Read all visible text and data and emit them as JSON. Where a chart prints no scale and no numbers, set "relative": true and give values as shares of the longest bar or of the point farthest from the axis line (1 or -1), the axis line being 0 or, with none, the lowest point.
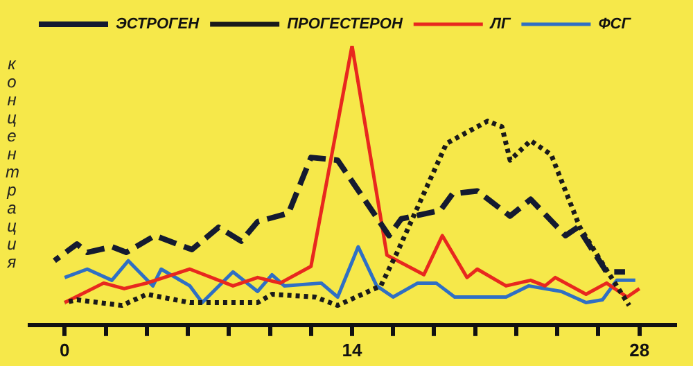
{
  "chart_data": {
    "type": "line",
    "relative": true,
    "ylabel": "концентрация",
    "legend": "top left",
    "marker": "none",
    "grid": false,
    "xlim": [
      -1.8,
      29.8
    ],
    "xticks": [
      0,
      {
        "value": 2,
        "label": null
      },
      {
        "value": 4,
        "label": null
      },
      {
        "value": 6,
        "label": null
      },
      {
        "value": 8,
        "label": null
      },
      {
        "value": 10,
        "label": null
      },
      {
        "value": 12,
        "label": null
      },
      14,
      {
        "value": 16,
        "label": null
      },
      {
        "value": 18,
        "label": null
      },
      {
        "value": 20,
        "label": null
      },
      {
        "value": 22,
        "label": null
      },
      {
        "value": 24,
        "label": null
      },
      {
        "value": 26,
        "label": null
      },
      28
    ],
    "series": [
      {
        "name": "ЭСТРОГЕН",
        "color": "#141a30",
        "line_style": "dashed",
        "x": [
          -0.5,
          0.6,
          1.1,
          2.3,
          3,
          4.4,
          6.2,
          7.5,
          8.6,
          9.4,
          10.9,
          12,
          13.3,
          15.8,
          16.4,
          18.3,
          18.9,
          20.1,
          21.7,
          22.7,
          24.4,
          25,
          26.4,
          27.3
        ],
        "values": [
          0.23,
          0.29,
          0.26,
          0.28,
          0.26,
          0.32,
          0.27,
          0.35,
          0.3,
          0.37,
          0.4,
          0.6,
          0.59,
          0.32,
          0.38,
          0.41,
          0.47,
          0.48,
          0.39,
          0.45,
          0.32,
          0.35,
          0.19,
          0.19
        ]
      },
      {
        "name": "ПРОГЕСТЕРОН",
        "color": "#1a1a1a",
        "line_style": "dotted",
        "x": [
          0,
          0.6,
          2.8,
          4,
          6.1,
          9.4,
          10.1,
          12.2,
          13.3,
          15.4,
          16.2,
          18.6,
          20.6,
          21.3,
          21.7,
          22.7,
          23.7,
          25.1,
          26.2,
          27.5
        ],
        "values": [
          0.08,
          0.09,
          0.07,
          0.11,
          0.08,
          0.08,
          0.11,
          0.1,
          0.07,
          0.14,
          0.26,
          0.65,
          0.73,
          0.71,
          0.59,
          0.66,
          0.61,
          0.35,
          0.22,
          0.07
        ]
      },
      {
        "name": "ЛГ",
        "color": "#e8281e",
        "line_style": "solid",
        "x": [
          0,
          1.9,
          2.9,
          4,
          6.1,
          8.2,
          9.4,
          10.5,
          12,
          14,
          15.7,
          17.5,
          18.4,
          19.6,
          20.1,
          21.5,
          22.7,
          23.4,
          23.9,
          25.4,
          26.4,
          27.4,
          28
        ],
        "values": [
          0.08,
          0.15,
          0.13,
          0.15,
          0.2,
          0.14,
          0.17,
          0.15,
          0.21,
          1,
          0.25,
          0.18,
          0.32,
          0.17,
          0.2,
          0.14,
          0.16,
          0.14,
          0.17,
          0.11,
          0.15,
          0.1,
          0.13
        ]
      },
      {
        "name": "ФСГ",
        "color": "#2f6fc4",
        "line_style": "solid",
        "x": [
          0,
          1.1,
          2.3,
          3.1,
          4.3,
          4.7,
          6.1,
          6.7,
          8.2,
          9.4,
          10.1,
          10.7,
          12.5,
          13.3,
          14.3,
          15.2,
          16,
          17.2,
          18.1,
          19,
          21.5,
          22.6,
          24.2,
          25.4,
          26.2,
          26.9,
          27.8
        ],
        "values": [
          0.17,
          0.2,
          0.16,
          0.23,
          0.14,
          0.2,
          0.14,
          0.08,
          0.19,
          0.12,
          0.18,
          0.14,
          0.15,
          0.1,
          0.28,
          0.14,
          0.1,
          0.15,
          0.15,
          0.1,
          0.1,
          0.14,
          0.12,
          0.08,
          0.09,
          0.16,
          0.16
        ]
      }
    ]
  }
}
